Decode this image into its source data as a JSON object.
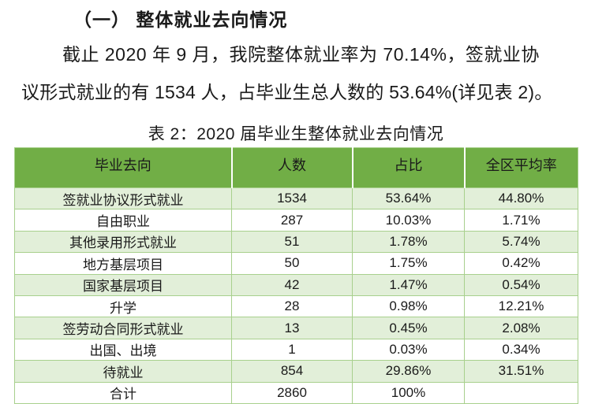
{
  "document": {
    "heading": "（一） 整体就业去向情况",
    "paragraph_lines": [
      "截止 2020 年 9 月，我院整体就业率为 70.14%，签就业协",
      "议形式就业的有 1534 人，占毕业生总人数的 53.64%(详见表 2)。"
    ]
  },
  "table": {
    "caption": "表 2：2020 届毕业生整体就业去向情况",
    "columns": [
      "毕业去向",
      "人数",
      "占比",
      "全区平均率"
    ],
    "rows": [
      [
        "签就业协议形式就业",
        "1534",
        "53.64%",
        "44.80%"
      ],
      [
        "自由职业",
        "287",
        "10.03%",
        "1.71%"
      ],
      [
        "其他录用形式就业",
        "51",
        "1.78%",
        "5.74%"
      ],
      [
        "地方基层项目",
        "50",
        "1.75%",
        "0.42%"
      ],
      [
        "国家基层项目",
        "42",
        "1.47%",
        "0.54%"
      ],
      [
        "升学",
        "28",
        "0.98%",
        "12.21%"
      ],
      [
        "签劳动合同形式就业",
        "13",
        "0.45%",
        "2.08%"
      ],
      [
        "出国、出境",
        "1",
        "0.03%",
        "0.34%"
      ],
      [
        "待就业",
        "854",
        "29.86%",
        "31.51%"
      ],
      [
        "合计",
        "2860",
        "100%",
        ""
      ]
    ],
    "colors": {
      "header_bg": "#71AE46",
      "band_bg": "#E2EFD9",
      "border": "#A8D08D",
      "text": "#1a1a1a"
    }
  }
}
